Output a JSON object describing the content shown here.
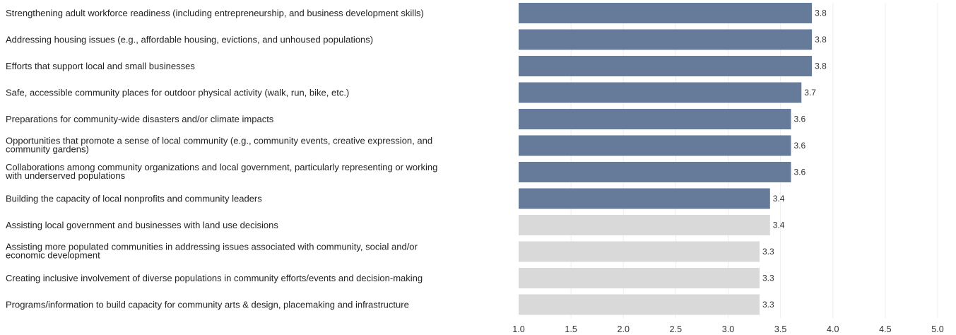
{
  "chart_data": {
    "type": "bar",
    "orientation": "horizontal",
    "title": "",
    "xlabel": "",
    "ylabel": "",
    "xlim": [
      1.0,
      5.0
    ],
    "ticks": [
      "1.0",
      "1.5",
      "2.0",
      "2.5",
      "3.0",
      "3.5",
      "4.0",
      "4.5",
      "5.0"
    ],
    "grid": true,
    "colors": {
      "highlight": "#667a99",
      "muted": "#d9d9d9"
    },
    "categories": [
      [
        "Strengthening adult workforce readiness (including entrepreneurship, and business development skills)"
      ],
      [
        "Addressing housing issues (e.g., affordable housing, evictions, and unhoused populations)"
      ],
      [
        "Efforts that support local and small businesses"
      ],
      [
        "Safe, accessible community places for outdoor physical activity (walk, run, bike, etc.)"
      ],
      [
        "Preparations for community-wide disasters and/or climate impacts"
      ],
      [
        "Opportunities that promote a sense of local community (e.g., community events, creative expression, and",
        "community gardens)"
      ],
      [
        "Collaborations among community organizations and local government, particularly representing or working",
        "with underserved populations"
      ],
      [
        "Building the capacity of local nonprofits and community leaders"
      ],
      [
        "Assisting local government and businesses with land use decisions"
      ],
      [
        "Assisting more populated communities in addressing issues associated with community, social and/or",
        "economic development"
      ],
      [
        "Creating inclusive involvement of diverse populations in community efforts/events and decision-making"
      ],
      [
        "Programs/information to build capacity for community arts & design, placemaking and infrastructure"
      ]
    ],
    "values": [
      3.8,
      3.8,
      3.8,
      3.7,
      3.6,
      3.6,
      3.6,
      3.4,
      3.4,
      3.3,
      3.3,
      3.3
    ],
    "value_labels": [
      "3.8",
      "3.8",
      "3.8",
      "3.7",
      "3.6",
      "3.6",
      "3.6",
      "3.4",
      "3.4",
      "3.3",
      "3.3",
      "3.3"
    ],
    "highlight": [
      true,
      true,
      true,
      true,
      true,
      true,
      true,
      true,
      false,
      false,
      false,
      false
    ]
  }
}
